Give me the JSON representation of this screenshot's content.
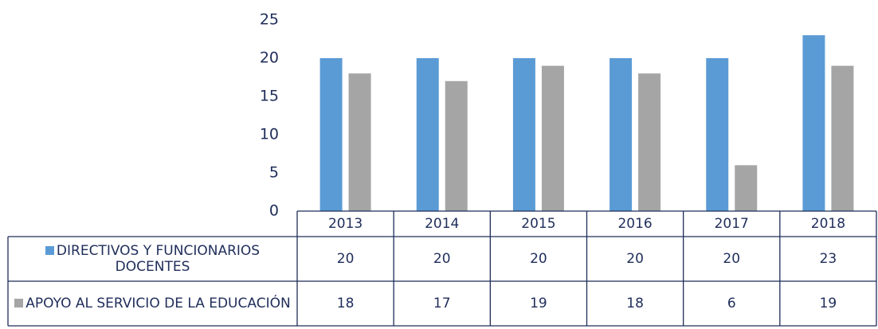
{
  "chart_data": {
    "type": "bar",
    "categories": [
      "2013",
      "2014",
      "2015",
      "2016",
      "2017",
      "2018"
    ],
    "series": [
      {
        "name": "DIRECTIVOS Y FUNCIONARIOS DOCENTES",
        "color": "#5b9bd5",
        "values": [
          20,
          20,
          20,
          20,
          20,
          23
        ]
      },
      {
        "name": "APOYO AL SERVICIO DE LA EDUCACIÓN",
        "color": "#a5a5a5",
        "values": [
          18,
          17,
          19,
          18,
          6,
          19
        ]
      }
    ],
    "ylim": [
      0,
      25
    ],
    "yticks": [
      0,
      5,
      10,
      15,
      20,
      25
    ],
    "grid": false,
    "data_table": true
  }
}
